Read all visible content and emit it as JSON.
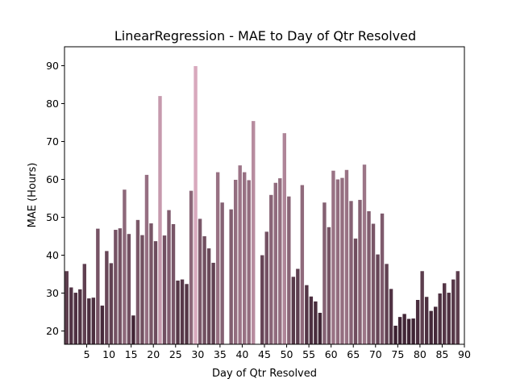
{
  "chart_data": {
    "type": "bar",
    "title": "LinearRegression - MAE to Day of Qtr Resolved",
    "xlabel": "Day of Qtr Resolved",
    "ylabel": "MAE (Hours)",
    "xlim": [
      0,
      90
    ],
    "ylim": [
      16.5,
      95
    ],
    "x_ticks": [
      5,
      10,
      15,
      20,
      25,
      30,
      35,
      40,
      45,
      50,
      55,
      60,
      65,
      70,
      75,
      80,
      85,
      90
    ],
    "y_ticks": [
      20,
      30,
      40,
      50,
      60,
      70,
      80,
      90
    ],
    "grid": false,
    "color_scale": {
      "min_color": "#3a1f2f",
      "max_color": "#d8a9bd",
      "domain": [
        21,
        90
      ]
    },
    "x": [
      1,
      2,
      3,
      4,
      5,
      6,
      7,
      8,
      9,
      10,
      11,
      12,
      13,
      14,
      15,
      16,
      17,
      18,
      19,
      20,
      21,
      22,
      23,
      24,
      25,
      26,
      27,
      28,
      29,
      30,
      31,
      32,
      33,
      34,
      35,
      36,
      37,
      38,
      39,
      40,
      41,
      42,
      43,
      44,
      45,
      46,
      47,
      48,
      49,
      50,
      51,
      52,
      53,
      54,
      55,
      56,
      57,
      58,
      59,
      60,
      61,
      62,
      63,
      64,
      65,
      66,
      67,
      68,
      69,
      70,
      71,
      72,
      73,
      74,
      75,
      76,
      77,
      78,
      79,
      80,
      81,
      82,
      83,
      84,
      85,
      86,
      87,
      88,
      89,
      90
    ],
    "values": [
      35.8,
      31.5,
      30.1,
      31.0,
      37.7,
      28.6,
      28.8,
      47.0,
      26.7,
      41.1,
      37.9,
      46.7,
      47.1,
      57.3,
      45.6,
      24.1,
      49.3,
      45.3,
      61.2,
      48.4,
      43.7,
      82.0,
      45.2,
      51.9,
      48.2,
      33.3,
      33.6,
      32.4,
      57.0,
      89.9,
      49.6,
      45.0,
      41.8,
      38.0,
      61.9,
      53.9,
      null,
      52.1,
      59.9,
      63.7,
      61.9,
      59.8,
      75.4,
      null,
      40.0,
      46.2,
      55.9,
      59.1,
      60.3,
      72.2,
      55.5,
      34.3,
      36.4,
      58.5,
      32.1,
      29.1,
      27.8,
      24.8,
      53.9,
      47.4,
      62.3,
      60.0,
      60.4,
      62.5,
      54.3,
      44.4,
      54.6,
      63.9,
      51.6,
      48.3,
      40.2,
      51.0,
      37.7,
      31.1,
      21.4,
      23.7,
      24.5,
      23.2,
      23.3,
      28.2,
      35.8,
      29.0,
      25.3,
      26.4,
      29.9,
      32.6,
      30.1,
      33.6,
      35.8,
      null
    ]
  }
}
